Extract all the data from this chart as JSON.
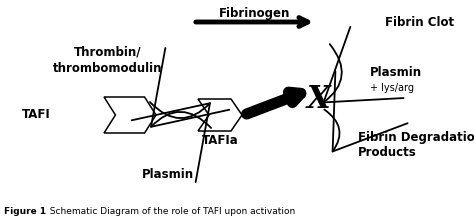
{
  "bg_color": "#ffffff",
  "fig_width": 4.74,
  "fig_height": 2.19,
  "dpi": 100,
  "labels": {
    "tafi": "TAFI",
    "thrombin": "Thrombin/\nthrombomodulin",
    "fibrinogen": "Fibrinogen",
    "fibrin_clot": "Fibrin Clot",
    "plasmin_right": "Plasmin",
    "lys_arg": "+ lys/arg",
    "fibrin_deg": "Fibrin Degradation\nProducts",
    "tafIa": "TAFIa",
    "plasmin_bottom": "Plasmin"
  },
  "caption_bold": "Figure 1",
  "caption_normal": "  Schematic Diagram of the role of TAFI upon activation",
  "black": "#000000",
  "white": "#ffffff"
}
